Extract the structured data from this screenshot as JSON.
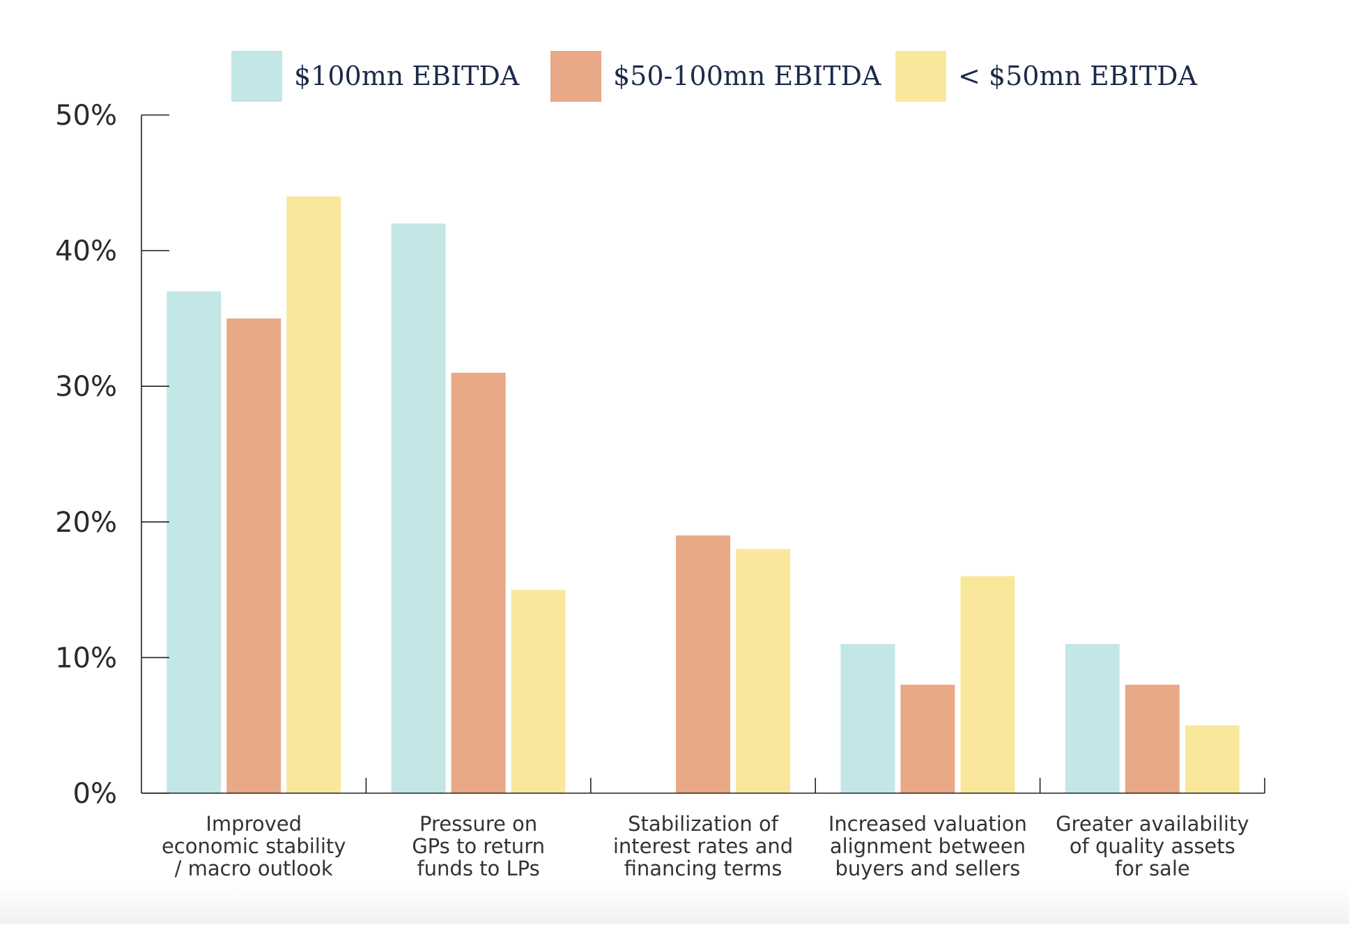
{
  "chart_data": {
    "type": "bar",
    "title": "",
    "xlabel": "",
    "ylabel": "",
    "ylim": [
      0,
      50
    ],
    "y_ticks": [
      0,
      10,
      20,
      30,
      40,
      50
    ],
    "y_tick_labels": [
      "0%",
      "10%",
      "20%",
      "30%",
      "40%",
      "50%"
    ],
    "legend_position": "top",
    "grid": false,
    "categories": [
      [
        "Improved",
        "economic stability",
        "/ macro outlook"
      ],
      [
        "Pressure on",
        "GPs to return",
        "funds to LPs"
      ],
      [
        "Stabilization of",
        "interest rates and",
        "financing terms"
      ],
      [
        "Increased valuation",
        "alignment between",
        "buyers and sellers"
      ],
      [
        "Greater availability",
        "of quality assets",
        "for sale"
      ]
    ],
    "series": [
      {
        "name": "$100mn EBITDA",
        "color": "#c3e6e6",
        "values": [
          37,
          42,
          0,
          11,
          11
        ]
      },
      {
        "name": "$50-100mn EBITDA",
        "color": "#e9a886",
        "values": [
          35,
          31,
          19,
          8,
          8
        ]
      },
      {
        "name": "< $50mn EBITDA",
        "color": "#f9e89c",
        "values": [
          44,
          15,
          18,
          16,
          5
        ]
      }
    ]
  }
}
